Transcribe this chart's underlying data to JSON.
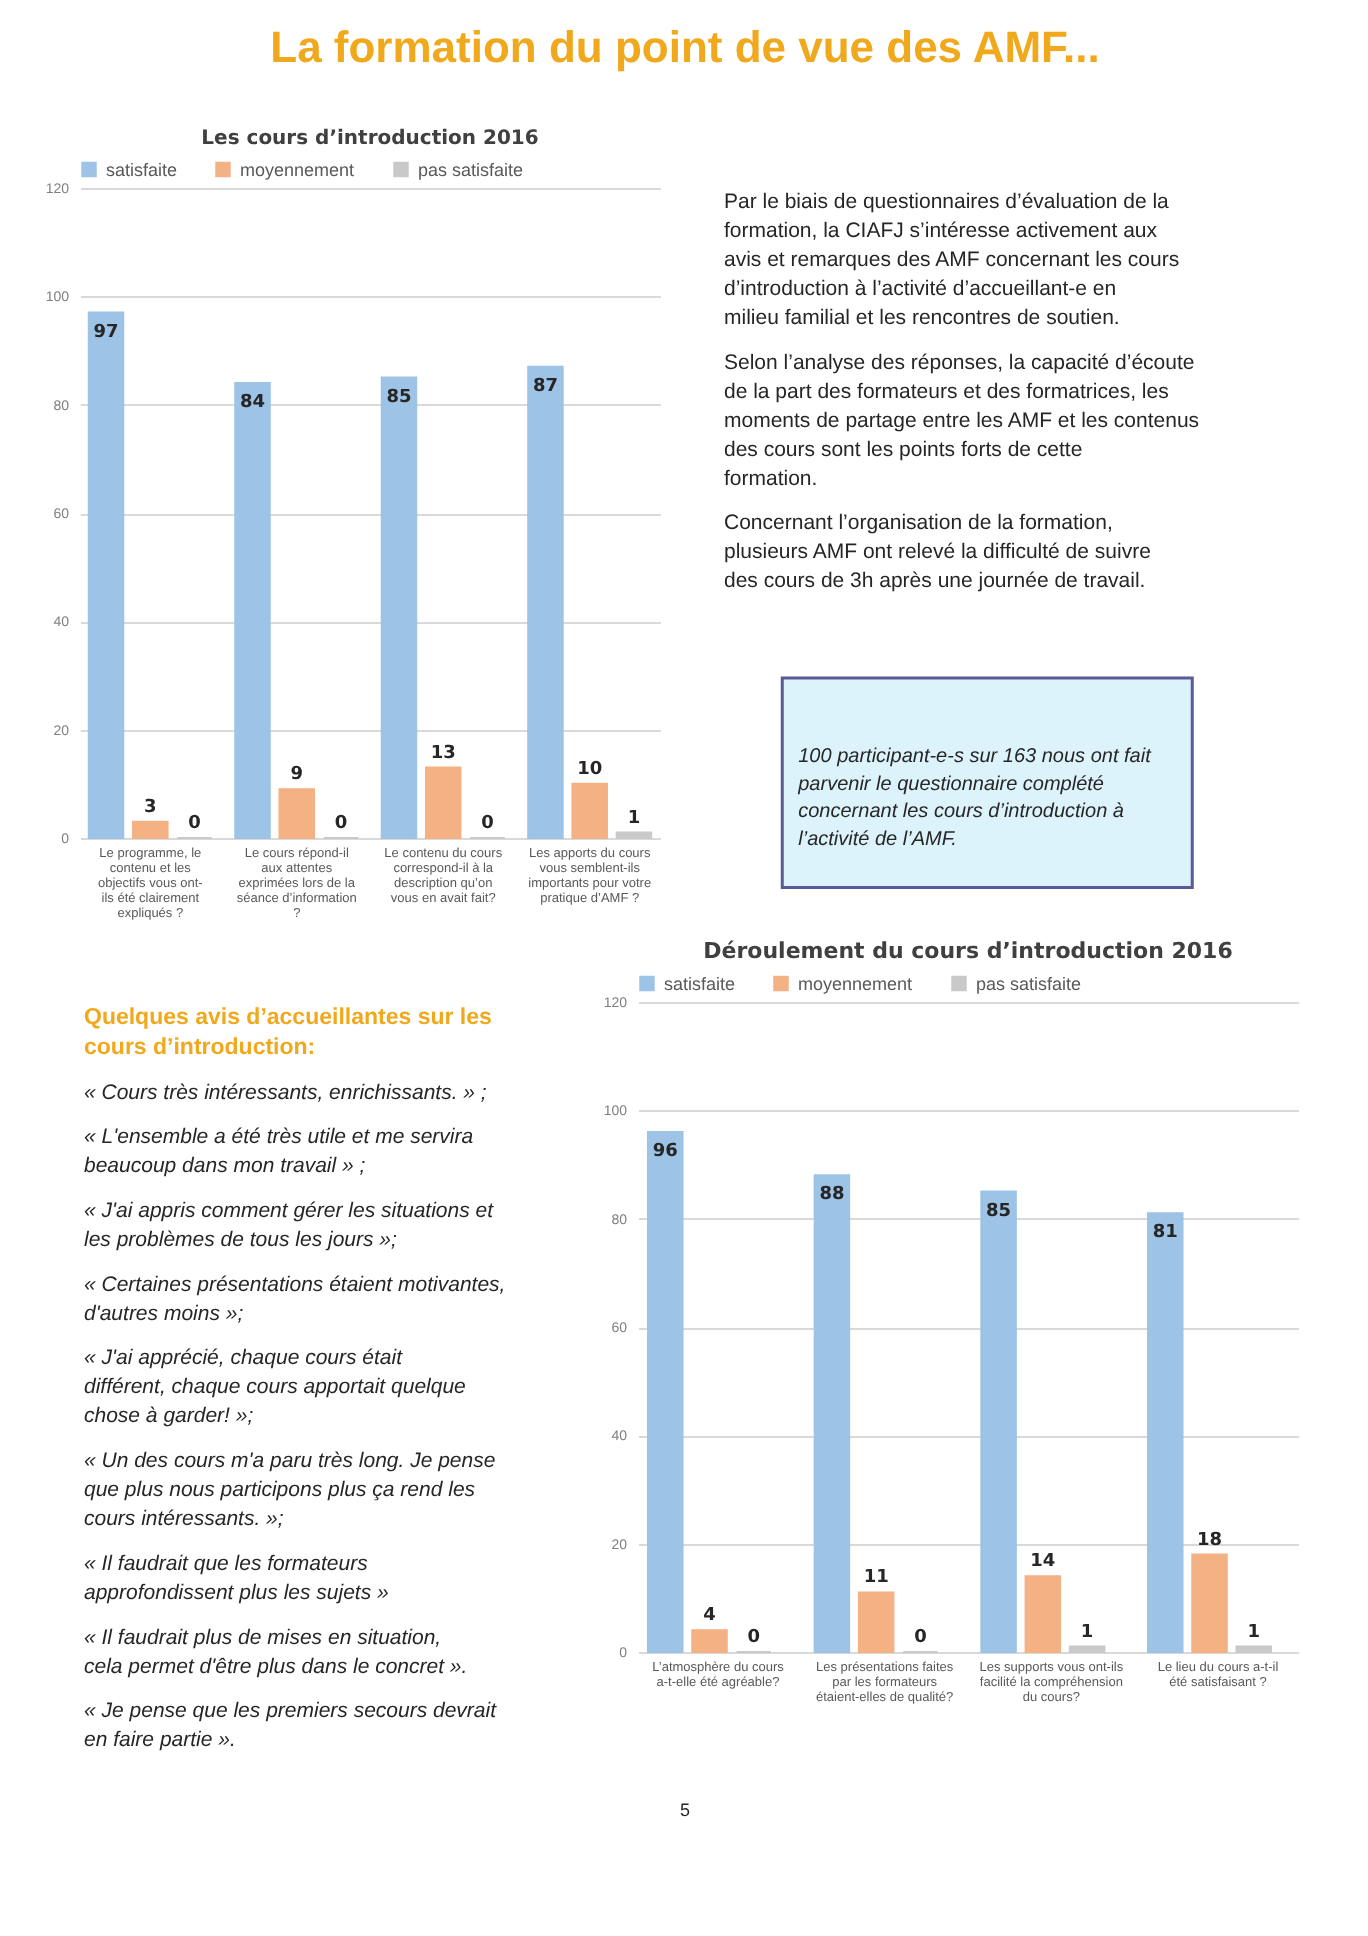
{
  "chart_data": [
    {
      "type": "other",
      "title": "La formation du point de vue des AMF..."
    },
    {
      "type": "bar",
      "title": "Les cours d’introduction  2016",
      "categories": [
        "Le programme, le contenu et les objectifs vous ont-ils été clairement expliqués ?",
        "Le cours répond-il aux attentes exprimées lors de la séance d’information ?",
        "Le contenu du cours correspond-il à la description qu’on vous en avait fait?",
        "Les apports du cours vous semblent-ils importants pour votre pratique d’AMF ?"
      ],
      "series": [
        {
          "name": "satisfaite",
          "color": "#9dc3e6",
          "values": [
            97,
            84,
            85,
            87
          ]
        },
        {
          "name": "moyennement",
          "color": "#f4b183",
          "values": [
            3,
            9,
            13,
            10
          ]
        },
        {
          "name": "pas satisfaite",
          "color": "#c9c9c9",
          "values": [
            0,
            0,
            0,
            1
          ]
        }
      ],
      "ylim": [
        0,
        120
      ],
      "yticks": [
        0,
        20,
        40,
        60,
        80,
        100,
        120
      ],
      "grid": "y",
      "legend": "top",
      "data_labels": true
    },
    {
      "type": "other",
      "annotations": [
        "Par le biais de questionnaires d’évaluation de la formation, la CIAFJ s’intéresse activement aux avis et remarques des AMF concernant les cours d’introduction à l’activité d’accueillant-e en milieu familial et les rencontres de soutien.",
        "Selon l’analyse des réponses, la capacité d’écoute de la part des formateurs et des formatrices, les moments de partage entre les AMF et les contenus des cours sont les points forts de cette formation.",
        "Concernant l’organisation de la formation, plusieurs AMF ont relevé la difficulté de suivre des cours de 3h après une journée de travail."
      ]
    },
    {
      "type": "other",
      "annotations": [
        "100 participant-e-s sur 163 nous ont fait parvenir le questionnaire complété concernant les cours d’introduction à l’activité de l’AMF."
      ]
    },
    {
      "type": "other",
      "title": "Quelques avis d’accueillantes sur les cours d’introduction:",
      "annotations": [
        "« Cours très intéressants, enrichissants. » ;",
        "« L'ensemble a été très utile et me servira beaucoup dans mon travail » ;",
        "« J'ai appris comment gérer les situations et les problèmes de tous les jours »;",
        "« Certaines présentations étaient motivantes, d'autres moins »;",
        "« J'ai apprécié, chaque cours était différent, chaque cours apportait quelque chose à garder! »;",
        "« Un des cours m'a paru très long. Je pense que plus nous participons plus ça rend les cours intéressants. »;",
        "« Il faudrait que les formateurs approfondissent plus les sujets »",
        "« Il faudrait plus de mises en situation, cela permet d'être plus dans le concret ».",
        "« Je pense que les premiers secours devrait en faire partie »."
      ]
    },
    {
      "type": "bar",
      "title": "Déroulement du cours d’introduction 2016",
      "categories": [
        "L’atmosphère du cours a-t-elle été agréable?",
        "Les présentations faites par les formateurs étaient-elles de qualité?",
        "Les supports vous ont-ils facilité la compréhension du cours?",
        "Le lieu du cours a-t-il été satisfaisant ?"
      ],
      "series": [
        {
          "name": "satisfaite",
          "color": "#9dc3e6",
          "values": [
            96,
            88,
            85,
            81
          ]
        },
        {
          "name": "moyennement",
          "color": "#f4b183",
          "values": [
            4,
            11,
            14,
            18
          ]
        },
        {
          "name": "pas satisfaite",
          "color": "#c9c9c9",
          "values": [
            0,
            0,
            1,
            1
          ]
        }
      ],
      "ylim": [
        0,
        120
      ],
      "yticks": [
        0,
        20,
        40,
        60,
        80,
        100,
        120
      ],
      "grid": "y",
      "legend": "top",
      "data_labels": true
    },
    {
      "type": "other",
      "annotations": [
        "5"
      ]
    }
  ]
}
